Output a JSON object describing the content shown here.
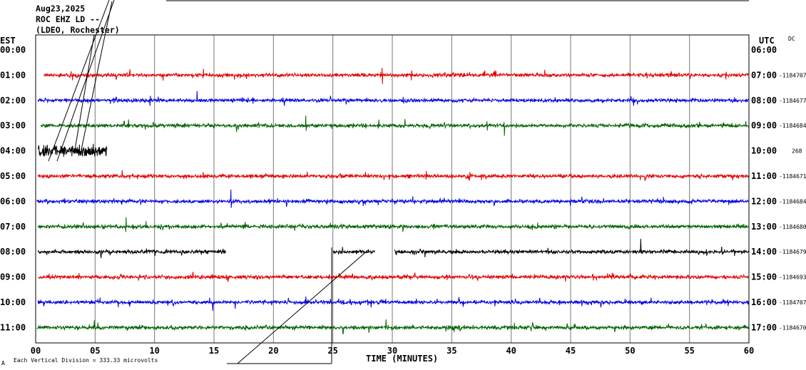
{
  "header": {
    "date": "Aug23,2025",
    "station": "ROC EHZ LD --",
    "network": "(LDEO, Rochester)"
  },
  "left_tz": "EST",
  "right_tz": "UTC",
  "right_tag": "DC",
  "x_title": "TIME (MINUTES)",
  "footer_left": "Each Vertical Division =  333.33 microvolts",
  "footer_mark": "A",
  "chart_data": {
    "type": "line",
    "title": "",
    "xlabel": "TIME (MINUTES)",
    "ylabel": "",
    "xlim": [
      0,
      60
    ],
    "x_ticks": [
      "00",
      "05",
      "10",
      "15",
      "20",
      "25",
      "30",
      "35",
      "40",
      "45",
      "50",
      "55",
      "60"
    ],
    "x_tick_values": [
      0,
      5,
      10,
      15,
      20,
      25,
      30,
      35,
      40,
      45,
      50,
      55,
      60
    ],
    "grid": true,
    "legend": "none",
    "rows": [
      {
        "est": "00:00",
        "utc": "06:00",
        "count": "",
        "color": "",
        "segments": []
      },
      {
        "est": "01:00",
        "utc": "07:00",
        "count": "-1184707",
        "color": "#e60000",
        "segments": [
          [
            0.7,
            60
          ]
        ]
      },
      {
        "est": "02:00",
        "utc": "08:00",
        "count": "-1184677",
        "color": "#0000e6",
        "segments": [
          [
            0.2,
            60
          ]
        ]
      },
      {
        "est": "03:00",
        "utc": "09:00",
        "count": "-1184684",
        "color": "#006400",
        "segments": [
          [
            0.4,
            60
          ]
        ]
      },
      {
        "est": "04:00",
        "utc": "10:00",
        "count": "268",
        "color": "#000000",
        "segments": [
          [
            0.2,
            6.0
          ]
        ]
      },
      {
        "est": "05:00",
        "utc": "11:00",
        "count": "-1184671",
        "color": "#e60000",
        "segments": [
          [
            0.2,
            60
          ]
        ]
      },
      {
        "est": "06:00",
        "utc": "12:00",
        "count": "-1184684",
        "color": "#0000e6",
        "segments": [
          [
            0.1,
            60
          ]
        ]
      },
      {
        "est": "07:00",
        "utc": "13:00",
        "count": "-1184680",
        "color": "#006400",
        "segments": [
          [
            0.2,
            60
          ]
        ]
      },
      {
        "est": "08:00",
        "utc": "14:00",
        "count": "-1184679",
        "color": "#000000",
        "segments": [
          [
            0.2,
            16.0
          ],
          [
            25.0,
            28.5
          ],
          [
            30.2,
            60
          ]
        ]
      },
      {
        "est": "09:00",
        "utc": "15:00",
        "count": "-1184693",
        "color": "#e60000",
        "segments": [
          [
            0.2,
            60
          ]
        ]
      },
      {
        "est": "10:00",
        "utc": "16:00",
        "count": "-1184707",
        "color": "#0000e6",
        "segments": [
          [
            0.2,
            60
          ]
        ]
      },
      {
        "est": "11:00",
        "utc": "17:00",
        "count": "-1184670",
        "color": "#006400",
        "segments": [
          [
            0.1,
            60
          ]
        ]
      }
    ]
  }
}
